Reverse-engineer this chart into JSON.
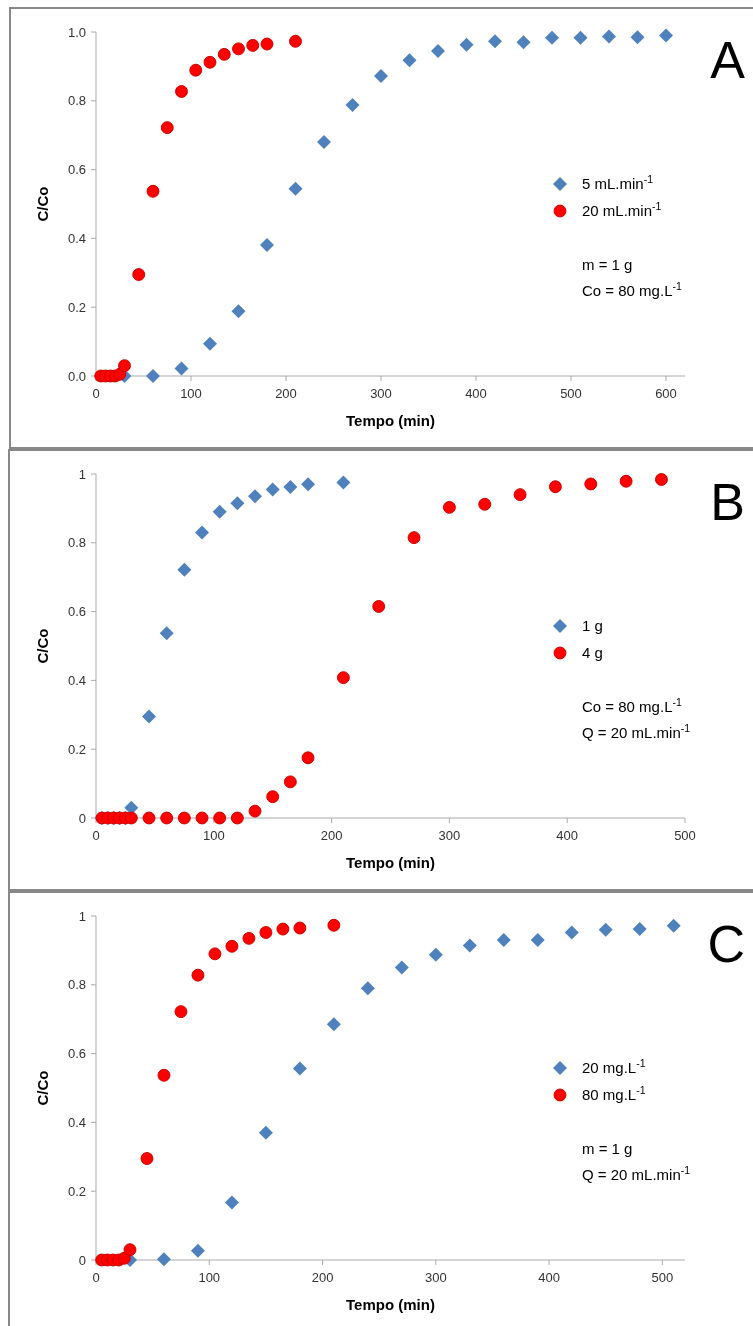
{
  "chart_data": [
    {
      "type": "scatter",
      "xlabel": "Tempo (min)",
      "ylabel": "C/Co",
      "xlim": [
        0,
        620
      ],
      "xticks": [
        0,
        100,
        200,
        300,
        400,
        500,
        600
      ],
      "ylim": [
        0,
        1
      ],
      "yticks": [
        {
          "value": 0,
          "label": "0.0"
        },
        {
          "value": 0.2,
          "label": "0.2"
        },
        {
          "value": 0.4,
          "label": "0.4"
        },
        {
          "value": 0.6,
          "label": "0.6"
        },
        {
          "value": 0.8,
          "label": "0.8"
        },
        {
          "value": 1,
          "label": "1.0"
        }
      ],
      "legend": "right",
      "annotations": [
        "A",
        "m = 1 g",
        "Co = 80 mg.L$^{-1}$"
      ],
      "series": [
        {
          "name": "5 mL.min$^{-1}$",
          "color": "#4f81bd",
          "marker": "diamond",
          "x": [
            30,
            60,
            90,
            120,
            150,
            180,
            210,
            240,
            270,
            300,
            330,
            360,
            390,
            420,
            450,
            480,
            510,
            540,
            570,
            600
          ],
          "values": [
            0,
            0,
            0.022,
            0.094,
            0.188,
            0.381,
            0.544,
            0.68,
            0.788,
            0.872,
            0.918,
            0.945,
            0.963,
            0.973,
            0.97,
            0.983,
            0.983,
            0.987,
            0.985,
            0.99
          ]
        },
        {
          "name": "20 mL.min$^{-1}$",
          "color": "#ff0000",
          "marker": "circle",
          "x": [
            5,
            10,
            15,
            20,
            25,
            30,
            45,
            60,
            75,
            90,
            105,
            120,
            135,
            150,
            165,
            180,
            210
          ],
          "values": [
            0,
            0,
            0,
            0,
            0.005,
            0.03,
            0.295,
            0.537,
            0.722,
            0.827,
            0.889,
            0.912,
            0.935,
            0.951,
            0.961,
            0.965,
            0.973
          ]
        }
      ]
    },
    {
      "type": "scatter",
      "xlabel": "Tempo (min)",
      "ylabel": "C/Co",
      "xlim": [
        0,
        500
      ],
      "xticks": [
        0,
        100,
        200,
        300,
        400,
        500
      ],
      "ylim": [
        0,
        1
      ],
      "yticks": [
        0,
        0.2,
        0.4,
        0.6,
        0.8,
        1
      ],
      "legend": "right",
      "annotations": [
        "B",
        "Co = 80 mg.L$^{-1}$",
        "Q = 20 mL.min$^{-1}$"
      ],
      "series": [
        {
          "name": "1 g",
          "color": "#4f81bd",
          "marker": "diamond",
          "x": [
            5,
            10,
            15,
            20,
            25,
            30,
            45,
            60,
            75,
            90,
            105,
            120,
            135,
            150,
            165,
            180,
            210
          ],
          "values": [
            0,
            0,
            0,
            0,
            0,
            0.03,
            0.295,
            0.537,
            0.722,
            0.83,
            0.89,
            0.915,
            0.935,
            0.955,
            0.962,
            0.97,
            0.975
          ]
        },
        {
          "name": "4 g",
          "color": "#ff0000",
          "marker": "circle",
          "x": [
            5,
            10,
            15,
            20,
            25,
            30,
            45,
            60,
            75,
            90,
            105,
            120,
            135,
            150,
            165,
            180,
            210,
            240,
            270,
            300,
            330,
            360,
            390,
            420,
            450,
            480
          ],
          "values": [
            0,
            0,
            0,
            0,
            0,
            0,
            0,
            0,
            0,
            0,
            0,
            0,
            0.02,
            0.062,
            0.105,
            0.175,
            0.408,
            0.615,
            0.815,
            0.903,
            0.912,
            0.94,
            0.963,
            0.971,
            0.979,
            0.984
          ]
        }
      ]
    },
    {
      "type": "scatter",
      "xlabel": "Tempo (min)",
      "ylabel": "C/Co",
      "xlim": [
        0,
        520
      ],
      "xticks": [
        0,
        100,
        200,
        300,
        400,
        500
      ],
      "ylim": [
        0,
        1
      ],
      "yticks": [
        0,
        0.2,
        0.4,
        0.6,
        0.8,
        1
      ],
      "legend": "right",
      "annotations": [
        "C",
        "m = 1 g",
        "Q = 20 mL.min$^{-1}$"
      ],
      "series": [
        {
          "name": "20 mg.L$^{-1}$",
          "color": "#4f81bd",
          "marker": "diamond",
          "x": [
            30,
            60,
            90,
            120,
            150,
            180,
            210,
            240,
            270,
            300,
            330,
            360,
            390,
            420,
            450,
            480,
            510
          ],
          "values": [
            0,
            0.002,
            0.027,
            0.167,
            0.37,
            0.557,
            0.685,
            0.79,
            0.85,
            0.887,
            0.914,
            0.93,
            0.93,
            0.952,
            0.96,
            0.962,
            0.972
          ]
        },
        {
          "name": "80 mg.L$^{-1}$",
          "color": "#ff0000",
          "marker": "circle",
          "x": [
            5,
            10,
            15,
            20,
            25,
            30,
            45,
            60,
            75,
            90,
            105,
            120,
            135,
            150,
            165,
            180,
            210
          ],
          "values": [
            0,
            0,
            0,
            0,
            0.005,
            0.03,
            0.295,
            0.537,
            0.722,
            0.828,
            0.89,
            0.912,
            0.935,
            0.952,
            0.962,
            0.965,
            0.973
          ]
        }
      ]
    }
  ]
}
